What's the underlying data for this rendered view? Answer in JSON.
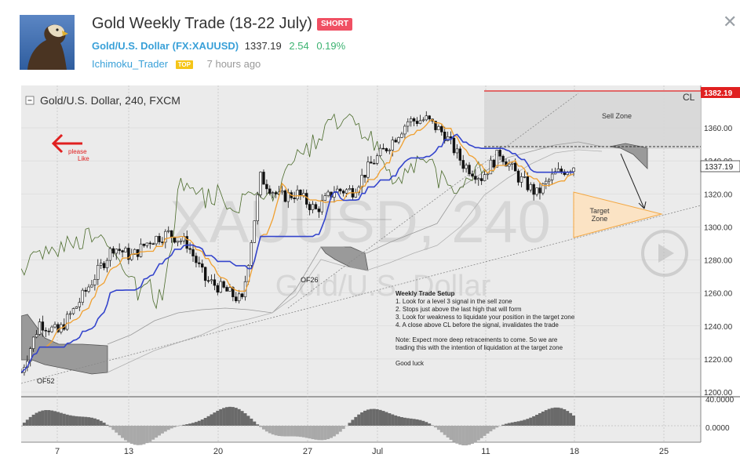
{
  "header": {
    "title": "Gold Weekly Trade (18-22 July)",
    "badge": "SHORT",
    "symbol_name": "Gold/U.S. Dollar",
    "symbol_ticker": "FX:XAUUSD",
    "price": "1337.19",
    "change": "2.54",
    "change_pct": "0.19%",
    "author": "Ichimoku_Trader",
    "author_badge": "TOP",
    "time_ago": "7 hours ago",
    "close_icon": "close-icon",
    "avatar_icon": "eagle-avatar-icon"
  },
  "chart": {
    "legend_title": "Gold/U.S. Dollar, 240, FXCM",
    "watermark_main": "XAUUSD, 240",
    "watermark_sub": "Gold/U.S. Dollar",
    "cl_label": "CL",
    "cl_price": "1382.19",
    "last_price": "1337.19",
    "sell_zone": "Sell Zone",
    "target_zone_line1": "Target",
    "target_zone_line2": "Zone",
    "please_like_1": "please",
    "please_like_2": "Like",
    "of52": "OF52",
    "of26": "OF26",
    "notes": {
      "heading": "Weekly Trade Setup",
      "items": [
        "1. Look for a level 3 signal in the sell zone",
        "2. Stops just above the last high that will form",
        "3. Look for weakness to liquidate your position in the target zone",
        "4. A close above CL before the signal, invalidates the trade"
      ],
      "note1": "Note: Expect more deep retracements to come. So we are",
      "note2": "trading this with the intention of liquidation at the target zone",
      "good_luck": "Good luck"
    },
    "colors": {
      "tenkan": "#f0a030",
      "kijun": "#3344cc",
      "chikou": "#4a6a2a",
      "cl_line": "#e02020",
      "target_zone": "#f5a030",
      "arrow_red": "#e02020"
    },
    "icons": {
      "collapse": "collapse-icon",
      "play": "play-icon",
      "back_arrow": "left-arrow-icon"
    }
  },
  "chart_data": {
    "type": "line",
    "title": "Gold/U.S. Dollar, 240, FXCM",
    "y_ticks": [
      "1360.00",
      "1340.00",
      "1320.00",
      "1300.00",
      "1280.00",
      "1260.00",
      "1240.00",
      "1220.00",
      "1200.00"
    ],
    "x_ticks": [
      "7",
      "13",
      "20",
      "27",
      "Jul",
      "11",
      "18",
      "25"
    ],
    "oscillator_ticks": [
      "40.0000",
      "0.0000"
    ],
    "ylim": [
      1198,
      1384
    ],
    "x": [
      0,
      3,
      6,
      9,
      12,
      15,
      18,
      21,
      24,
      27,
      30,
      33,
      36,
      39,
      42,
      45,
      48,
      51,
      54,
      57,
      60,
      63,
      66,
      69,
      72,
      75,
      78,
      81,
      84,
      87,
      90
    ],
    "series": [
      {
        "name": "price",
        "values": [
          1212,
          1242,
          1236,
          1252,
          1270,
          1288,
          1282,
          1292,
          1296,
          1290,
          1268,
          1262,
          1255,
          1330,
          1318,
          1320,
          1310,
          1322,
          1322,
          1338,
          1350,
          1364,
          1365,
          1356,
          1338,
          1330,
          1345,
          1330,
          1320,
          1332,
          1337
        ]
      }
    ],
    "horizontal_lines": [
      {
        "label": "CL",
        "value": 1382.19
      },
      {
        "label": "last",
        "value": 1337.19
      }
    ],
    "zones": [
      {
        "label": "Sell Zone",
        "y_range": [
          1345,
          1382
        ]
      },
      {
        "label": "Target Zone",
        "y_range": [
          1300,
          1323
        ]
      }
    ]
  }
}
